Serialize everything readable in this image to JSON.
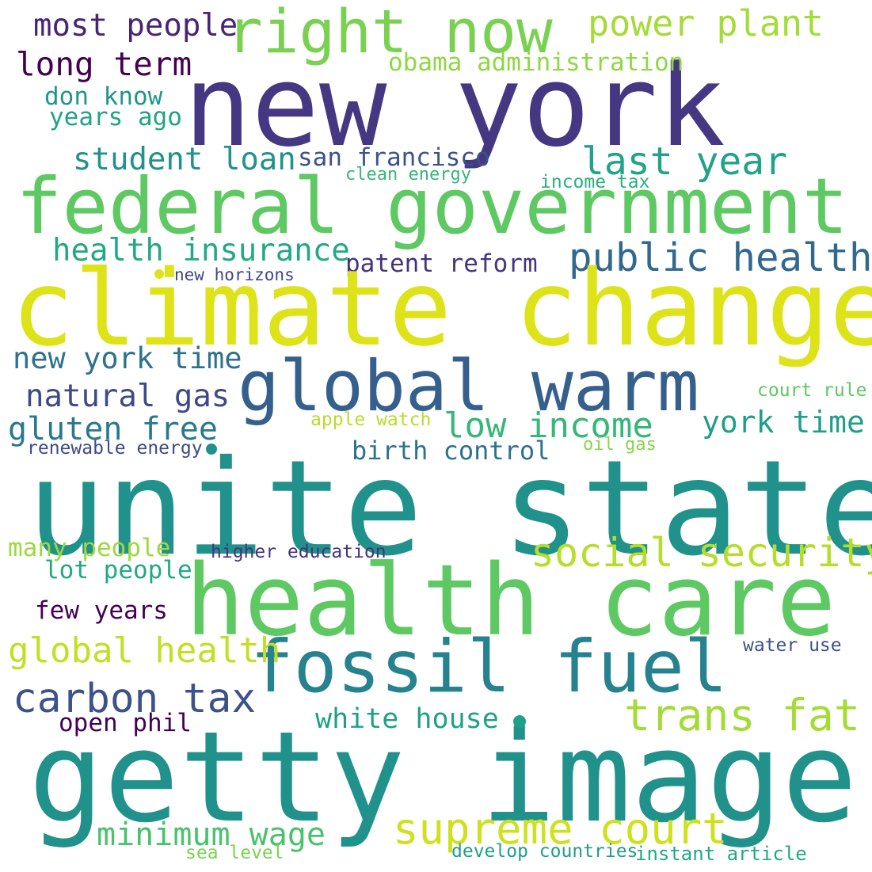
{
  "words": [
    {
      "text": "new york",
      "color": "#453781"
    },
    {
      "text": "right now",
      "color": "#7ad151"
    },
    {
      "text": "power plant",
      "color": "#a5db36"
    },
    {
      "text": "most people",
      "color": "#482475"
    },
    {
      "text": "obama administration",
      "color": "#8fd744"
    },
    {
      "text": "long term",
      "color": "#440154"
    },
    {
      "text": "don know",
      "color": "#1f968b"
    },
    {
      "text": "years ago",
      "color": "#20a386"
    },
    {
      "text": "student loan",
      "color": "#21918c"
    },
    {
      "text": "san francisco",
      "color": "#3b528b"
    },
    {
      "text": "last year",
      "color": "#20a386"
    },
    {
      "text": "clean energy",
      "color": "#35b779"
    },
    {
      "text": "income tax",
      "color": "#29af7f"
    },
    {
      "text": "federal government",
      "color": "#5ec962"
    },
    {
      "text": "health insurance",
      "color": "#22a884"
    },
    {
      "text": "public health",
      "color": "#31688e"
    },
    {
      "text": "patent reform",
      "color": "#46337e"
    },
    {
      "text": "new horizons",
      "color": "#414487"
    },
    {
      "text": "climate change",
      "color": "#dde318"
    },
    {
      "text": "new york time",
      "color": "#2c728e"
    },
    {
      "text": "global warm",
      "color": "#355f8d"
    },
    {
      "text": "natural gas",
      "color": "#3e4989"
    },
    {
      "text": "gluten free",
      "color": "#2a788e"
    },
    {
      "text": "low income",
      "color": "#35b779"
    },
    {
      "text": "york time",
      "color": "#1f9e89"
    },
    {
      "text": "court rule",
      "color": "#5ec962"
    },
    {
      "text": "apple watch",
      "color": "#b5de2b"
    },
    {
      "text": "renewable energy",
      "color": "#3e4989"
    },
    {
      "text": "birth control",
      "color": "#2c728e"
    },
    {
      "text": "oil gas",
      "color": "#86d549"
    },
    {
      "text": "unite state",
      "color": "#21918c"
    },
    {
      "text": "many people",
      "color": "#9bd93c"
    },
    {
      "text": "higher education",
      "color": "#46337e"
    },
    {
      "text": "social security",
      "color": "#b5de2b"
    },
    {
      "text": "lot people",
      "color": "#22a884"
    },
    {
      "text": "health care",
      "color": "#5ec962"
    },
    {
      "text": "few years",
      "color": "#440154"
    },
    {
      "text": "fossil fuel",
      "color": "#26828e"
    },
    {
      "text": "global health",
      "color": "#c2df23"
    },
    {
      "text": "water use",
      "color": "#3b528b"
    },
    {
      "text": "carbon tax",
      "color": "#3b528b"
    },
    {
      "text": "trans fat",
      "color": "#a5db36"
    },
    {
      "text": "white house",
      "color": "#1fa187"
    },
    {
      "text": "open phil",
      "color": "#440154"
    },
    {
      "text": "getty image",
      "color": "#21918c"
    },
    {
      "text": "minimum wage",
      "color": "#4ac16d"
    },
    {
      "text": "supreme court",
      "color": "#cde11d"
    },
    {
      "text": "sea level",
      "color": "#7ad151"
    },
    {
      "text": "develop countries",
      "color": "#1f9e89"
    },
    {
      "text": "instant article",
      "color": "#22a884"
    }
  ],
  "dot_colors": {
    "dot1": "#dde318",
    "dot2": "#21918c",
    "dot3": "#1fa187"
  }
}
